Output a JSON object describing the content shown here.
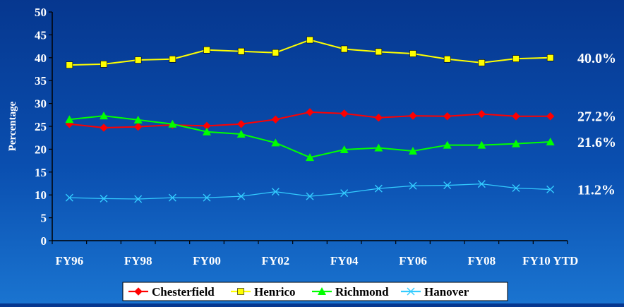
{
  "chart_data": {
    "type": "line",
    "ylabel": "Percentage",
    "ylim": [
      0,
      50
    ],
    "yticks": [
      0,
      5,
      10,
      15,
      20,
      25,
      30,
      35,
      40,
      45,
      50
    ],
    "x": [
      "FY96",
      "FY97",
      "FY98",
      "FY99",
      "FY00",
      "FY01",
      "FY02",
      "FY03",
      "FY04",
      "FY05",
      "FY06",
      "FY07",
      "FY08",
      "FY09",
      "FY10 YTD"
    ],
    "xtick_labels": [
      "FY96",
      "",
      "FY98",
      "",
      "FY00",
      "",
      "FY02",
      "",
      "FY04",
      "",
      "FY06",
      "",
      "FY08",
      "",
      "FY10 YTD"
    ],
    "legend_position": "bottom",
    "series": [
      {
        "name": "Chesterfield",
        "color": "#ff0000",
        "marker": "diamond",
        "values": [
          25.5,
          24.7,
          24.9,
          25.3,
          25.1,
          25.5,
          26.5,
          28.1,
          27.8,
          26.9,
          27.3,
          27.2,
          27.7,
          27.2,
          27.2
        ],
        "end_label": "27.2%"
      },
      {
        "name": "Henrico",
        "color": "#ffff00",
        "marker": "square",
        "values": [
          38.4,
          38.6,
          39.5,
          39.7,
          41.7,
          41.4,
          41.1,
          43.9,
          41.9,
          41.3,
          40.9,
          39.7,
          38.9,
          39.8,
          40.0
        ],
        "end_label": "40.0%"
      },
      {
        "name": "Richmond",
        "color": "#00ff00",
        "marker": "triangle",
        "values": [
          26.5,
          27.3,
          26.4,
          25.5,
          23.8,
          23.3,
          21.4,
          18.2,
          19.9,
          20.3,
          19.6,
          20.9,
          20.9,
          21.2,
          21.6
        ],
        "end_label": "21.6%"
      },
      {
        "name": "Hanover",
        "color": "#33ccff",
        "marker": "x",
        "values": [
          9.4,
          9.2,
          9.1,
          9.4,
          9.4,
          9.7,
          10.7,
          9.7,
          10.4,
          11.4,
          12.0,
          12.1,
          12.4,
          11.5,
          11.2
        ],
        "end_label": "11.2%"
      }
    ]
  }
}
